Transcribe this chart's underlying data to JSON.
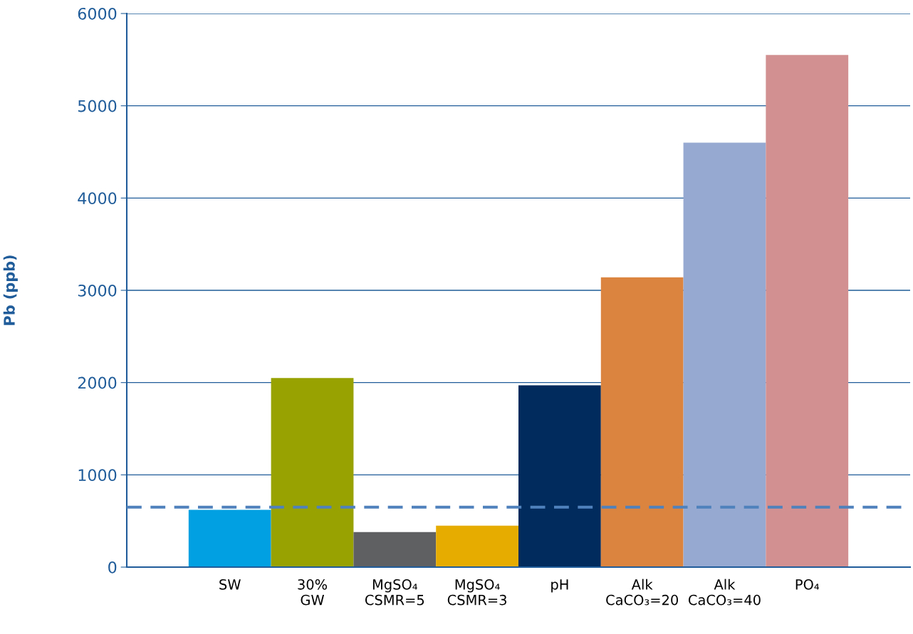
{
  "chart_data": {
    "type": "bar",
    "ylabel": "Pb (ppb)",
    "categories": [
      "SW",
      "30%\nGW",
      "MgSO₄\nCSMR=5",
      "MgSO₄\nCSMR=3",
      "pH",
      "Alk\nCaCO₃=20",
      "Alk\nCaCO₃=40",
      "PO₄"
    ],
    "values": [
      620,
      2050,
      380,
      450,
      1970,
      3140,
      4600,
      5550
    ],
    "colors": [
      "#00a0e3",
      "#98a200",
      "#5f6062",
      "#e6ad00",
      "#002b5c",
      "#db8440",
      "#95a9d1",
      "#d29090"
    ],
    "ylim": [
      0,
      6000
    ],
    "yticks": [
      0,
      1000,
      2000,
      3000,
      4000,
      5000,
      6000
    ],
    "grid": "y",
    "ref_lines": [
      {
        "axis": "y",
        "value": 650,
        "color": "#4f81bd",
        "line_style": "dashed"
      }
    ]
  }
}
